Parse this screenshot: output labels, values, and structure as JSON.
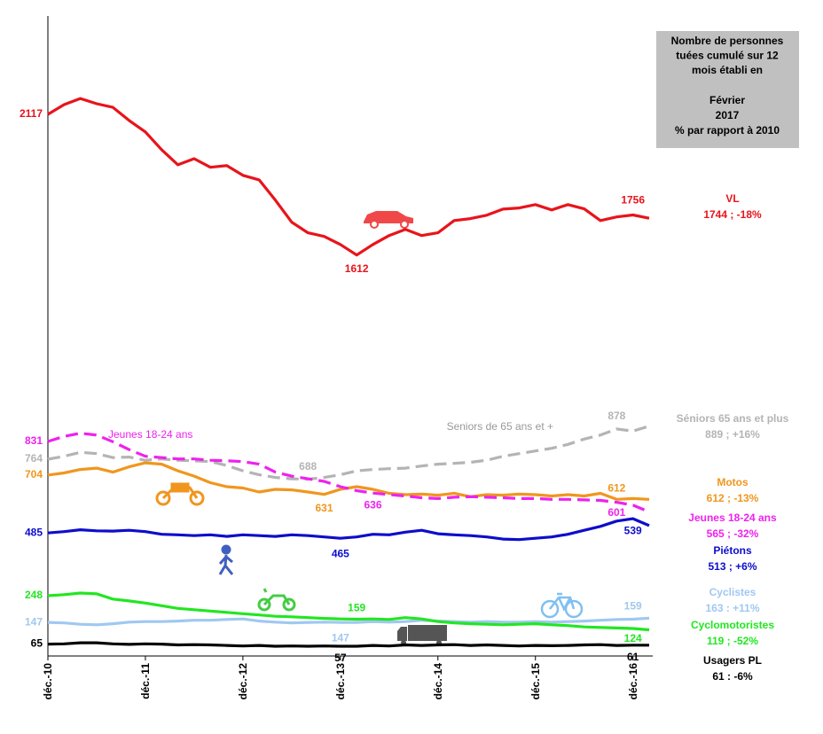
{
  "chart_data": [
    {
      "type": "line",
      "ylim": [
        1080,
        2470
      ],
      "series": [
        {
          "name": "VL",
          "summary": "1744 ; -18%",
          "color": "#e8141b",
          "dashed": false,
          "values": [
            2117,
            2152,
            2174,
            2155,
            2142,
            2095,
            2054,
            1990,
            1936,
            1958,
            1927,
            1933,
            1898,
            1882,
            1809,
            1730,
            1692,
            1679,
            1650,
            1612,
            1650,
            1682,
            1704,
            1682,
            1692,
            1736,
            1743,
            1755,
            1777,
            1781,
            1793,
            1774,
            1793,
            1778,
            1736,
            1749,
            1756,
            1744
          ],
          "value_labels": [
            "2117",
            null,
            null,
            null,
            null,
            null,
            null,
            null,
            null,
            null,
            null,
            null,
            null,
            null,
            null,
            null,
            null,
            null,
            null,
            "1612",
            null,
            null,
            null,
            null,
            null,
            null,
            null,
            null,
            null,
            null,
            null,
            null,
            null,
            null,
            null,
            null,
            "1756",
            null
          ]
        }
      ]
    },
    {
      "type": "line",
      "ylim": [
        20,
        975
      ],
      "categories": [
        "déc.-10",
        null,
        null,
        null,
        null,
        null,
        "déc.-11",
        null,
        null,
        null,
        null,
        null,
        "déc.-12",
        null,
        null,
        null,
        null,
        null,
        "déc.-13",
        null,
        null,
        null,
        null,
        null,
        "déc.-14",
        null,
        null,
        null,
        null,
        null,
        "déc.-15",
        null,
        null,
        null,
        null,
        null,
        "déc.-16",
        null
      ],
      "series": [
        {
          "name": "Séniors 65 ans et plus",
          "summary": "889 ; +16%",
          "color": "#b4b4b4",
          "dashed": true,
          "values": [
            764,
            775,
            790,
            785,
            770,
            772,
            760,
            765,
            760,
            758,
            755,
            740,
            720,
            705,
            695,
            690,
            688,
            695,
            705,
            720,
            725,
            728,
            730,
            738,
            745,
            748,
            752,
            760,
            775,
            785,
            795,
            805,
            820,
            840,
            855,
            878,
            870,
            889
          ],
          "value_labels": [
            "764",
            null,
            null,
            null,
            null,
            null,
            null,
            null,
            null,
            null,
            null,
            null,
            null,
            null,
            null,
            null,
            "688",
            null,
            null,
            null,
            null,
            null,
            null,
            null,
            null,
            null,
            null,
            null,
            null,
            null,
            null,
            null,
            null,
            null,
            null,
            "878",
            null,
            null
          ]
        },
        {
          "name": "Motos",
          "summary": "612 ; -13%",
          "color": "#f0961e",
          "dashed": false,
          "values": [
            704,
            712,
            725,
            730,
            715,
            735,
            750,
            745,
            720,
            700,
            675,
            660,
            655,
            640,
            650,
            648,
            640,
            631,
            650,
            660,
            650,
            635,
            630,
            632,
            628,
            635,
            622,
            630,
            628,
            632,
            630,
            625,
            630,
            625,
            635,
            612,
            615,
            612
          ],
          "value_labels": [
            "704",
            null,
            null,
            null,
            null,
            null,
            null,
            null,
            null,
            null,
            null,
            null,
            null,
            null,
            null,
            null,
            null,
            "631",
            null,
            null,
            null,
            null,
            null,
            null,
            null,
            null,
            null,
            null,
            null,
            null,
            null,
            null,
            null,
            null,
            null,
            "612",
            null,
            null
          ]
        },
        {
          "name": "Jeunes 18-24 ans",
          "summary": "565 ; -32%",
          "color": "#ee22ee",
          "dashed": true,
          "values": [
            831,
            850,
            862,
            855,
            830,
            800,
            775,
            770,
            765,
            765,
            760,
            758,
            755,
            745,
            715,
            700,
            690,
            680,
            660,
            645,
            636,
            630,
            625,
            618,
            615,
            620,
            622,
            620,
            618,
            615,
            615,
            612,
            612,
            610,
            608,
            601,
            590,
            565
          ],
          "value_labels": [
            "831",
            null,
            null,
            null,
            null,
            null,
            null,
            null,
            null,
            null,
            null,
            null,
            null,
            null,
            null,
            null,
            null,
            null,
            null,
            null,
            "636",
            null,
            null,
            null,
            null,
            null,
            null,
            null,
            null,
            null,
            null,
            null,
            null,
            null,
            null,
            "601",
            null,
            null
          ]
        },
        {
          "name": "Piétons",
          "summary": "513 ; +6%",
          "color": "#0d0dcc",
          "dashed": false,
          "values": [
            485,
            490,
            497,
            493,
            492,
            495,
            490,
            480,
            478,
            475,
            478,
            472,
            478,
            475,
            472,
            478,
            475,
            470,
            465,
            470,
            480,
            478,
            488,
            495,
            482,
            478,
            475,
            470,
            462,
            460,
            465,
            470,
            480,
            495,
            510,
            530,
            539,
            513
          ],
          "value_labels": [
            "485",
            null,
            null,
            null,
            null,
            null,
            null,
            null,
            null,
            null,
            null,
            null,
            null,
            null,
            null,
            null,
            null,
            null,
            "465",
            null,
            null,
            null,
            null,
            null,
            null,
            null,
            null,
            null,
            null,
            null,
            null,
            null,
            null,
            null,
            null,
            null,
            "539",
            null
          ]
        },
        {
          "name": "Cyclistes",
          "summary": "163 : +11%",
          "color": "#a0c8f0",
          "dashed": false,
          "values": [
            147,
            145,
            140,
            138,
            142,
            148,
            150,
            150,
            152,
            155,
            155,
            158,
            160,
            152,
            148,
            145,
            147,
            148,
            147,
            147,
            150,
            148,
            150,
            155,
            152,
            150,
            148,
            150,
            148,
            148,
            150,
            148,
            150,
            152,
            155,
            158,
            159,
            163
          ],
          "value_labels": [
            "147",
            null,
            null,
            null,
            null,
            null,
            null,
            null,
            null,
            null,
            null,
            null,
            null,
            null,
            null,
            null,
            null,
            null,
            "147",
            null,
            null,
            null,
            null,
            null,
            null,
            null,
            null,
            null,
            null,
            null,
            null,
            null,
            null,
            null,
            null,
            null,
            "159",
            null
          ]
        },
        {
          "name": "Cyclomotoristes",
          "summary": "119 ; -52%",
          "color": "#22e622",
          "dashed": false,
          "values": [
            248,
            252,
            258,
            255,
            235,
            228,
            220,
            210,
            200,
            195,
            190,
            185,
            180,
            175,
            170,
            168,
            165,
            162,
            160,
            159,
            160,
            158,
            165,
            160,
            150,
            145,
            142,
            140,
            138,
            140,
            142,
            138,
            135,
            130,
            128,
            126,
            124,
            119
          ],
          "value_labels": [
            "248",
            null,
            null,
            null,
            null,
            null,
            null,
            null,
            null,
            null,
            null,
            null,
            null,
            null,
            null,
            null,
            null,
            null,
            null,
            "159",
            null,
            null,
            null,
            null,
            null,
            null,
            null,
            null,
            null,
            null,
            null,
            null,
            null,
            null,
            null,
            null,
            "124",
            null
          ]
        },
        {
          "name": "Usagers PL",
          "summary": "61 : -6%",
          "color": "#000000",
          "dashed": false,
          "values": [
            65,
            66,
            70,
            70,
            66,
            64,
            66,
            65,
            62,
            63,
            62,
            60,
            58,
            60,
            57,
            58,
            57,
            58,
            57,
            57,
            60,
            58,
            62,
            60,
            62,
            63,
            60,
            62,
            60,
            58,
            60,
            59,
            60,
            62,
            63,
            60,
            61,
            61
          ],
          "value_labels": [
            "65",
            null,
            null,
            null,
            null,
            null,
            null,
            null,
            null,
            null,
            null,
            null,
            null,
            null,
            null,
            null,
            null,
            null,
            "57",
            null,
            null,
            null,
            null,
            null,
            null,
            null,
            null,
            null,
            null,
            null,
            null,
            null,
            null,
            null,
            null,
            null,
            "61",
            null
          ]
        }
      ],
      "annotations": [
        {
          "text": "Jeunes 18-24 ans",
          "color": "#ee22ee"
        },
        {
          "text": "Seniors de 65 ans et +",
          "color": "#999999"
        }
      ]
    }
  ],
  "note": {
    "lines": [
      "Nombre de personnes",
      "tuées cumulé sur 12",
      "mois établi en"
    ],
    "period": [
      "Février",
      "2017",
      "% par rapport à 2010"
    ]
  }
}
